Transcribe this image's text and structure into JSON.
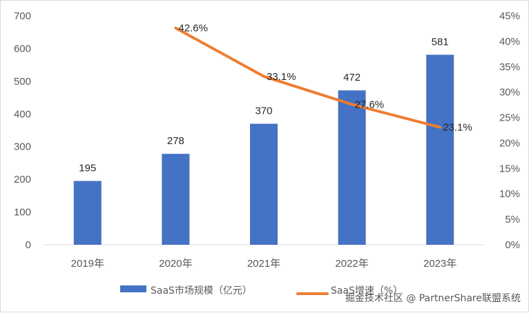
{
  "chart_data": {
    "type": "bar",
    "categories": [
      "2019年",
      "2020年",
      "2021年",
      "2022年",
      "2023年"
    ],
    "series": [
      {
        "name": "SaaS市场规模（亿元）",
        "type": "bar",
        "axis": "left",
        "values": [
          195,
          278,
          370,
          472,
          581
        ],
        "labels": [
          "195",
          "278",
          "370",
          "472",
          "581"
        ],
        "color": "#4472C4"
      },
      {
        "name": "SaaS增速（%）",
        "type": "line",
        "axis": "right",
        "values": [
          null,
          42.6,
          33.1,
          27.6,
          23.1
        ],
        "labels": [
          "",
          "42.6%",
          "33.1%",
          "27.6%",
          "23.1%"
        ],
        "color": "#ED7D31"
      }
    ],
    "y_left": {
      "ylim": [
        0,
        700
      ],
      "ticks": [
        "0",
        "100",
        "200",
        "300",
        "400",
        "500",
        "600",
        "700"
      ]
    },
    "y_right": {
      "ylim": [
        0,
        45
      ],
      "ticks": [
        "0%",
        "5%",
        "10%",
        "15%",
        "20%",
        "25%",
        "30%",
        "35%",
        "40%",
        "45%"
      ]
    },
    "title": "",
    "xlabel": "",
    "ylabel": "",
    "grid": false,
    "legend": "bottom"
  },
  "watermark": "掘金技术社区 @ PartnerShare联盟系统"
}
